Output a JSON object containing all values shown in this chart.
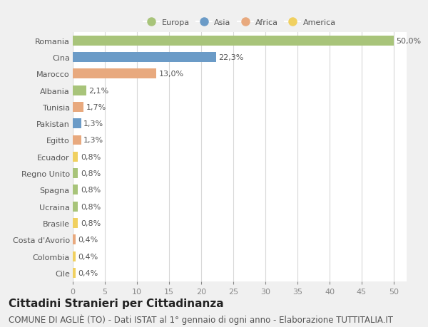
{
  "categories": [
    "Romania",
    "Cina",
    "Marocco",
    "Albania",
    "Tunisia",
    "Pakistan",
    "Egitto",
    "Ecuador",
    "Regno Unito",
    "Spagna",
    "Ucraina",
    "Brasile",
    "Costa d'Avorio",
    "Colombia",
    "Cile"
  ],
  "values": [
    50.0,
    22.3,
    13.0,
    2.1,
    1.7,
    1.3,
    1.3,
    0.8,
    0.8,
    0.8,
    0.8,
    0.8,
    0.4,
    0.4,
    0.4
  ],
  "labels": [
    "50,0%",
    "22,3%",
    "13,0%",
    "2,1%",
    "1,7%",
    "1,3%",
    "1,3%",
    "0,8%",
    "0,8%",
    "0,8%",
    "0,8%",
    "0,8%",
    "0,4%",
    "0,4%",
    "0,4%"
  ],
  "continents": [
    "Europa",
    "Asia",
    "Africa",
    "Europa",
    "Africa",
    "Asia",
    "Africa",
    "America",
    "Europa",
    "Europa",
    "Europa",
    "America",
    "Africa",
    "America",
    "America"
  ],
  "colors": {
    "Europa": "#a8c47a",
    "Asia": "#6b9bc7",
    "Africa": "#e8a97e",
    "America": "#f0d060"
  },
  "legend_items": [
    "Europa",
    "Asia",
    "Africa",
    "America"
  ],
  "xlim": [
    0,
    52
  ],
  "xticks": [
    0,
    5,
    10,
    15,
    20,
    25,
    30,
    35,
    40,
    45,
    50
  ],
  "title": "Cittadini Stranieri per Cittadinanza",
  "subtitle": "COMUNE DI AGLIÈ (TO) - Dati ISTAT al 1° gennaio di ogni anno - Elaborazione TUTTITALIA.IT",
  "bg_color": "#f0f0f0",
  "plot_bg_color": "#ffffff",
  "grid_color": "#d8d8d8",
  "title_fontsize": 11,
  "subtitle_fontsize": 8.5,
  "label_fontsize": 8,
  "tick_fontsize": 8,
  "bar_height": 0.6
}
